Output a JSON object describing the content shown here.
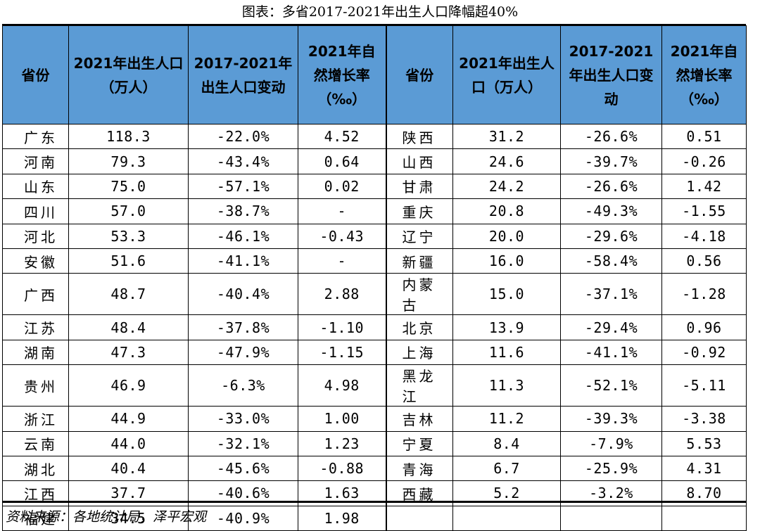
{
  "title": "图表：多省2017-2021年出生人口降幅超40%",
  "headers_left": [
    "省份",
    "2021年出生人口（万人）",
    "2017-2021年出生人口变动",
    "2021年自然增长率（‰）"
  ],
  "headers_right": [
    "省份",
    "2021年出生人口（万人）",
    "2017-2021年出生人口变动",
    "2021年自然增长率（‰）"
  ],
  "rows_left": [
    [
      "广东",
      "118.3",
      "-22.0%",
      "4.52"
    ],
    [
      "河南",
      "79.3",
      "-43.4%",
      "0.64"
    ],
    [
      "山东",
      "75.0",
      "-57.1%",
      "0.02"
    ],
    [
      "四川",
      "57.0",
      "-38.7%",
      "-"
    ],
    [
      "河北",
      "53.3",
      "-46.1%",
      "-0.43"
    ],
    [
      "安徽",
      "51.6",
      "-41.1%",
      "-"
    ],
    [
      "广西",
      "48.7",
      "-40.4%",
      "2.88"
    ],
    [
      "江苏",
      "48.4",
      "-37.8%",
      "-1.10"
    ],
    [
      "湖南",
      "47.3",
      "-47.9%",
      "-1.15"
    ],
    [
      "贵州",
      "46.9",
      "-6.3%",
      "4.98"
    ],
    [
      "浙江",
      "44.9",
      "-33.0%",
      "1.00"
    ],
    [
      "云南",
      "44.0",
      "-32.1%",
      "1.23"
    ],
    [
      "湖北",
      "40.4",
      "-45.6%",
      "-0.88"
    ],
    [
      "江西",
      "37.7",
      "-40.6%",
      "1.63"
    ],
    [
      "福建",
      "34.5",
      "-40.9%",
      "1.98"
    ]
  ],
  "rows_right": [
    [
      "陕西",
      "31.2",
      "-26.6%",
      "0.51"
    ],
    [
      "山西",
      "24.6",
      "-39.7%",
      "-0.26"
    ],
    [
      "甘肃",
      "24.2",
      "-26.6%",
      "1.42"
    ],
    [
      "重庆",
      "20.8",
      "-49.3%",
      "-1.55"
    ],
    [
      "辽宁",
      "20.0",
      "-29.6%",
      "-4.18"
    ],
    [
      "新疆",
      "16.0",
      "-58.4%",
      "0.56"
    ],
    [
      "内蒙古",
      "15.0",
      "-37.1%",
      "-1.28"
    ],
    [
      "北京",
      "13.9",
      "-29.4%",
      "0.96"
    ],
    [
      "上海",
      "11.6",
      "-41.1%",
      "-0.92"
    ],
    [
      "黑龙江",
      "11.3",
      "-52.1%",
      "-5.11"
    ],
    [
      "吉林",
      "11.2",
      "-39.3%",
      "-3.38"
    ],
    [
      "宁夏",
      "8.4",
      "-7.9%",
      "5.53"
    ],
    [
      "青海",
      "6.7",
      "-25.9%",
      "4.31"
    ],
    [
      "西藏",
      "5.2",
      "-3.2%",
      "8.70"
    ],
    [
      "",
      "",
      "",
      ""
    ]
  ],
  "source": "资料来源：各地统计局，泽平宏观",
  "colors": {
    "header_bg": "#5b9bd5"
  }
}
